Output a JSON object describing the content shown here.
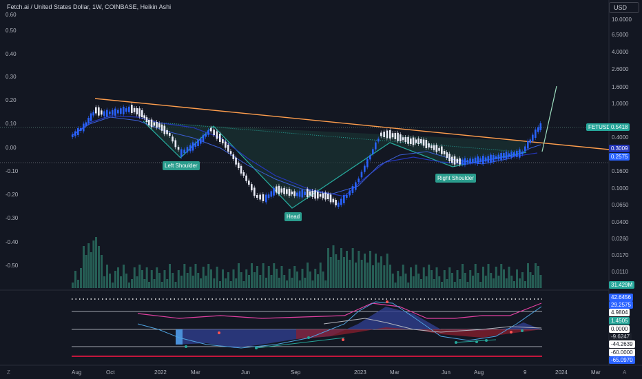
{
  "header": {
    "title": "Fetch.ai / United States Dollar, 1W, COINBASE, Heikin Ashi",
    "currency_button": "USD"
  },
  "left_axis": [
    "0.60",
    "0.50",
    "0.40",
    "0.30",
    "0.20",
    "0.10",
    "0.00",
    "-0.10",
    "-0.20",
    "-0.30",
    "-0.40",
    "-0.50"
  ],
  "right_axis": [
    "10.0000",
    "6.5000",
    "4.0000",
    "2.6000",
    "1.6000",
    "1.0000",
    "0.4000",
    "0.1600",
    "0.1000",
    "0.0650",
    "0.0400",
    "0.0260",
    "0.0170",
    "0.0110"
  ],
  "x_axis": [
    "Aug",
    "Oct",
    "2022",
    "Mar",
    "Jun",
    "Sep",
    "2023",
    "Mar",
    "Jun",
    "Aug",
    "9",
    "2024",
    "Mar"
  ],
  "pattern_labels": {
    "left_shoulder": "Left Shoulder",
    "head": "Head",
    "right_shoulder": "Right Shoulder"
  },
  "price_tags": {
    "symbol": "FETUSD",
    "last_price": "0.5418",
    "ma_a": "0.3009",
    "ma_b": "0.2575",
    "volume": "31.429M"
  },
  "oscillator_tags": [
    "42.6456",
    "29.2575",
    "4.9804",
    "1.4505",
    "0.0000",
    "-9.6247",
    "-44.2639",
    "-60.0000",
    "-65.0970"
  ],
  "corner_labels": {
    "bottom_left": "Z",
    "bottom_right": "A"
  },
  "colors": {
    "background": "#131722",
    "bull_candle": "#2962ff",
    "bear_candle": "#e8eaf6",
    "neckline": "#ff9e4d",
    "pattern": "#26a69a",
    "ma_blue": "#2536b8",
    "price_tag": "#26a69a",
    "oscillator_red": "#ff1744"
  },
  "icons": [
    "settings-z-icon",
    "auto-scale-icon"
  ]
}
